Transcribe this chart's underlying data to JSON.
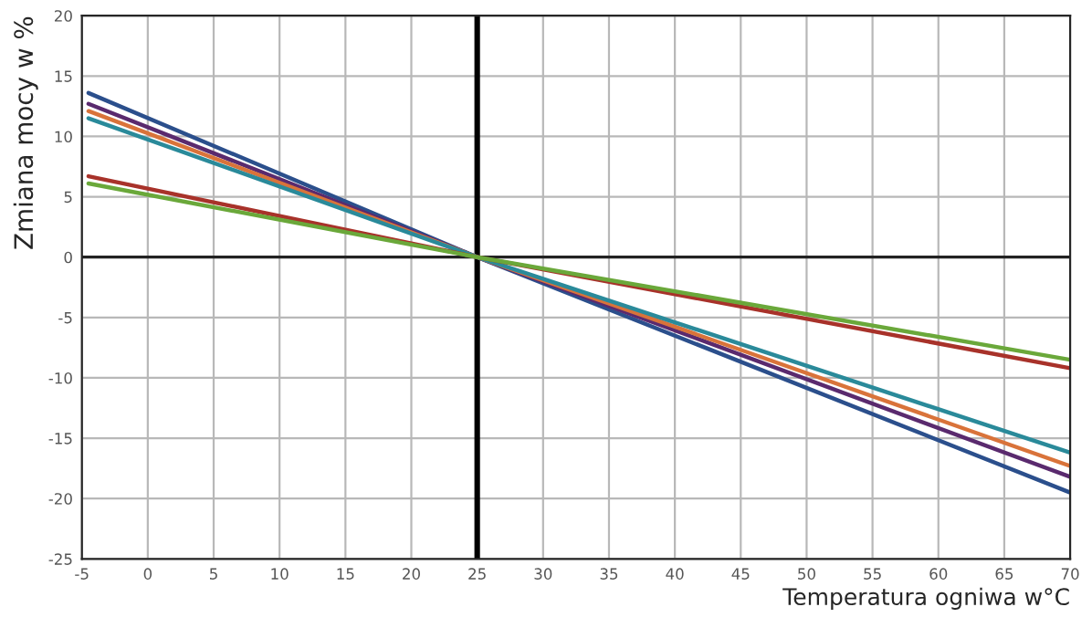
{
  "chart_data": {
    "type": "line",
    "xlabel": "Temperatura ogniwa w°C",
    "ylabel": "Zmiana mocy w %",
    "x": [
      -4.5,
      25,
      70
    ],
    "series": [
      {
        "color": "#2b4f8c",
        "values": [
          13.6,
          0,
          -19.5
        ]
      },
      {
        "color": "#5a2a6e",
        "values": [
          12.7,
          0,
          -18.2
        ]
      },
      {
        "color": "#d9733a",
        "values": [
          12.1,
          0,
          -17.3
        ]
      },
      {
        "color": "#2a8a9a",
        "values": [
          11.5,
          0,
          -16.2
        ]
      },
      {
        "color": "#a8322a",
        "values": [
          6.7,
          0,
          -9.2
        ]
      },
      {
        "color": "#6aa83a",
        "values": [
          6.1,
          0,
          -8.5
        ]
      }
    ],
    "xlim": [
      -5,
      70
    ],
    "xticks": [
      -5,
      0,
      5,
      10,
      15,
      20,
      25,
      30,
      35,
      40,
      45,
      50,
      55,
      60,
      65,
      70
    ],
    "ylim": [
      -25,
      20
    ],
    "yticks": [
      -25,
      -20,
      -15,
      -10,
      -5,
      0,
      5,
      10,
      15,
      20
    ],
    "ref_lines": [
      {
        "axis": "x",
        "value": 25,
        "color": "#000000"
      },
      {
        "axis": "y",
        "value": 0,
        "color": "#222222"
      }
    ],
    "grid": true,
    "marker": "none",
    "line_style": "solid",
    "legend": false
  }
}
